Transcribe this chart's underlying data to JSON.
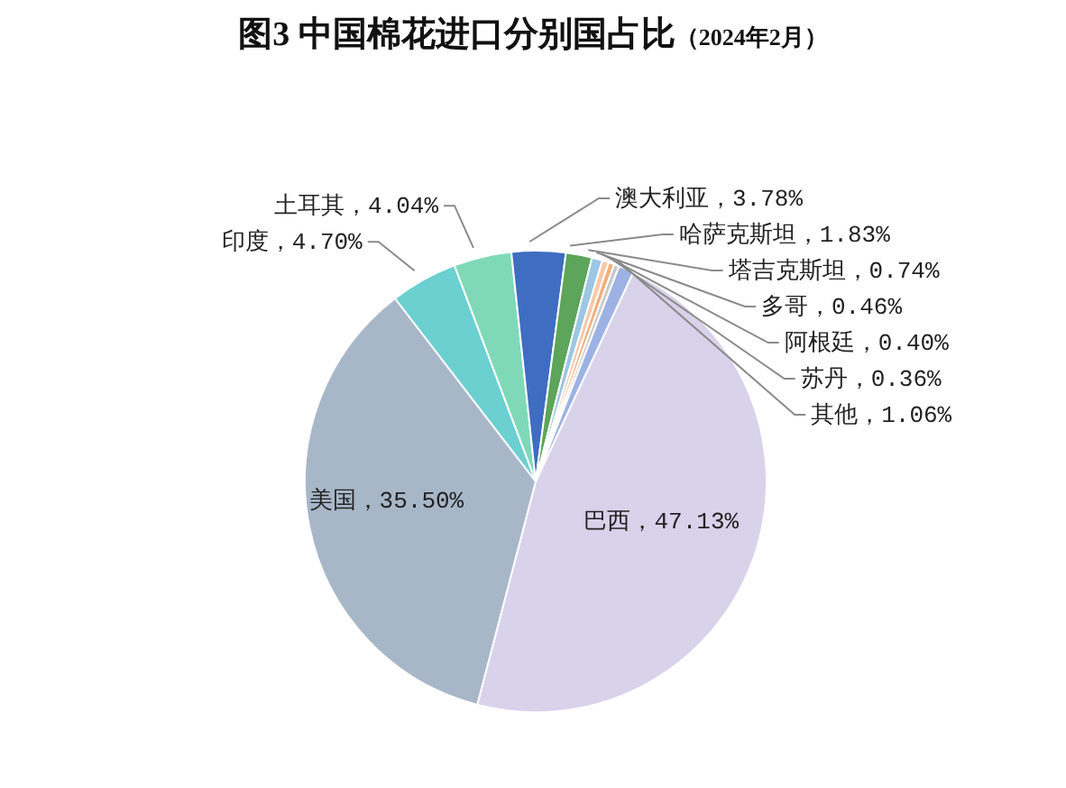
{
  "chart_data": {
    "type": "pie",
    "title": "图3  中国棉花进口分别国占比",
    "subtitle": "（2024年2月）",
    "categories": [
      "巴西",
      "美国",
      "印度",
      "土耳其",
      "澳大利亚",
      "哈萨克斯坦",
      "塔吉克斯坦",
      "多哥",
      "阿根廷",
      "苏丹",
      "其他"
    ],
    "values": [
      47.13,
      35.5,
      4.7,
      4.04,
      3.78,
      1.83,
      0.74,
      0.46,
      0.4,
      0.36,
      1.06
    ],
    "colors": [
      "#d8d2ea",
      "#a8b7c8",
      "#6ccfd0",
      "#7fd9b9",
      "#3e6dc2",
      "#5ca55a",
      "#9cc6e4",
      "#f7c8a8",
      "#f2ad7a",
      "#c9c9c9",
      "#9db2e3"
    ],
    "value_labels": [
      "，47.13%",
      "，35.50%",
      "，4.70%",
      "，4.04%",
      "，3.78%",
      "，1.83%",
      "，0.74%",
      "，0.46%",
      "，0.40%",
      "，0.36%",
      "，1.06%"
    ]
  }
}
